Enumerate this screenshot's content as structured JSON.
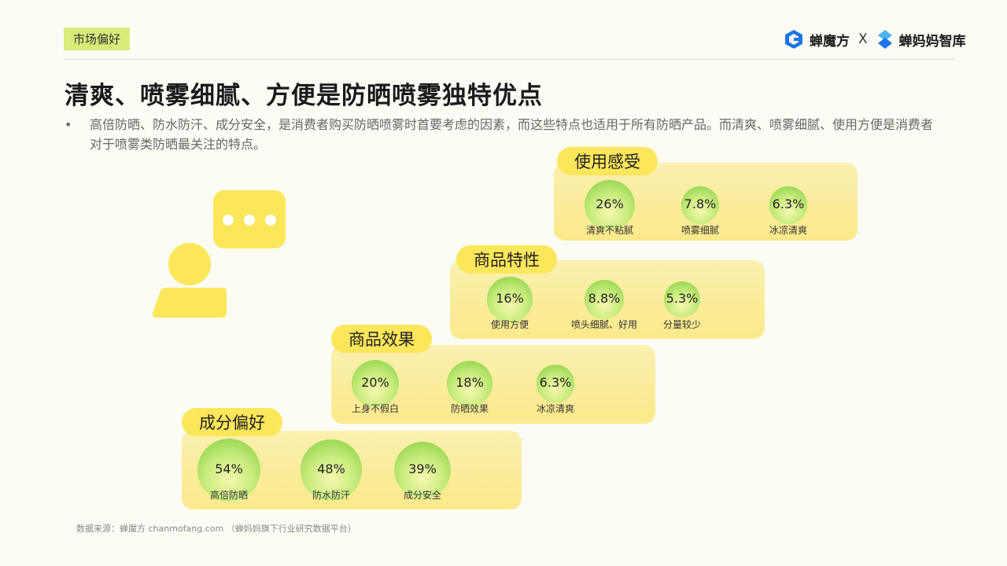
{
  "header": {
    "tag": "市场偏好",
    "brand1": "蝉魔方",
    "brand_sep": "X",
    "brand2": "蝉妈妈智库"
  },
  "title": "清爽、喷雾细腻、方便是防晒喷雾独特优点",
  "bullet": {
    "dot": "•",
    "text": "高倍防晒、防水防汗、成分安全，是消费者购买防晒喷雾时首要考虑的因素，而这些特点也适用于所有防晒产品。而清爽、喷雾细腻、使用方便是消费者对于喷雾类防晒最关注的特点。"
  },
  "colors": {
    "accent": "#fce65a",
    "tag_bg": "#d9ec7a",
    "bubble_green": "#7fcd3c"
  },
  "chart_data": {
    "type": "bubble",
    "unit": "%",
    "groups": [
      {
        "name": "成分偏好",
        "items": [
          {
            "label": "高倍防晒",
            "value": 54,
            "display": "54%"
          },
          {
            "label": "防水防汗",
            "value": 48,
            "display": "48%"
          },
          {
            "label": "成分安全",
            "value": 39,
            "display": "39%"
          }
        ]
      },
      {
        "name": "商品效果",
        "items": [
          {
            "label": "上身不假白",
            "value": 20,
            "display": "20%"
          },
          {
            "label": "防晒效果",
            "value": 18,
            "display": "18%"
          },
          {
            "label": "冰凉清爽",
            "value": 6.3,
            "display": "6.3%"
          }
        ]
      },
      {
        "name": "商品特性",
        "items": [
          {
            "label": "使用方便",
            "value": 16,
            "display": "16%"
          },
          {
            "label": "喷头细腻、好用",
            "value": 8.8,
            "display": "8.8%"
          },
          {
            "label": "分量较少",
            "value": 5.3,
            "display": "5.3%"
          }
        ]
      },
      {
        "name": "使用感受",
        "items": [
          {
            "label": "清爽不粘腻",
            "value": 26,
            "display": "26%"
          },
          {
            "label": "喷雾细腻",
            "value": 7.8,
            "display": "7.8%"
          },
          {
            "label": "冰凉清爽",
            "value": 6.3,
            "display": "6.3%"
          }
        ]
      }
    ]
  },
  "footer": {
    "source": "数据来源：蝉魔方 chanmofang.com （蝉妈妈旗下行业研究数据平台）"
  }
}
